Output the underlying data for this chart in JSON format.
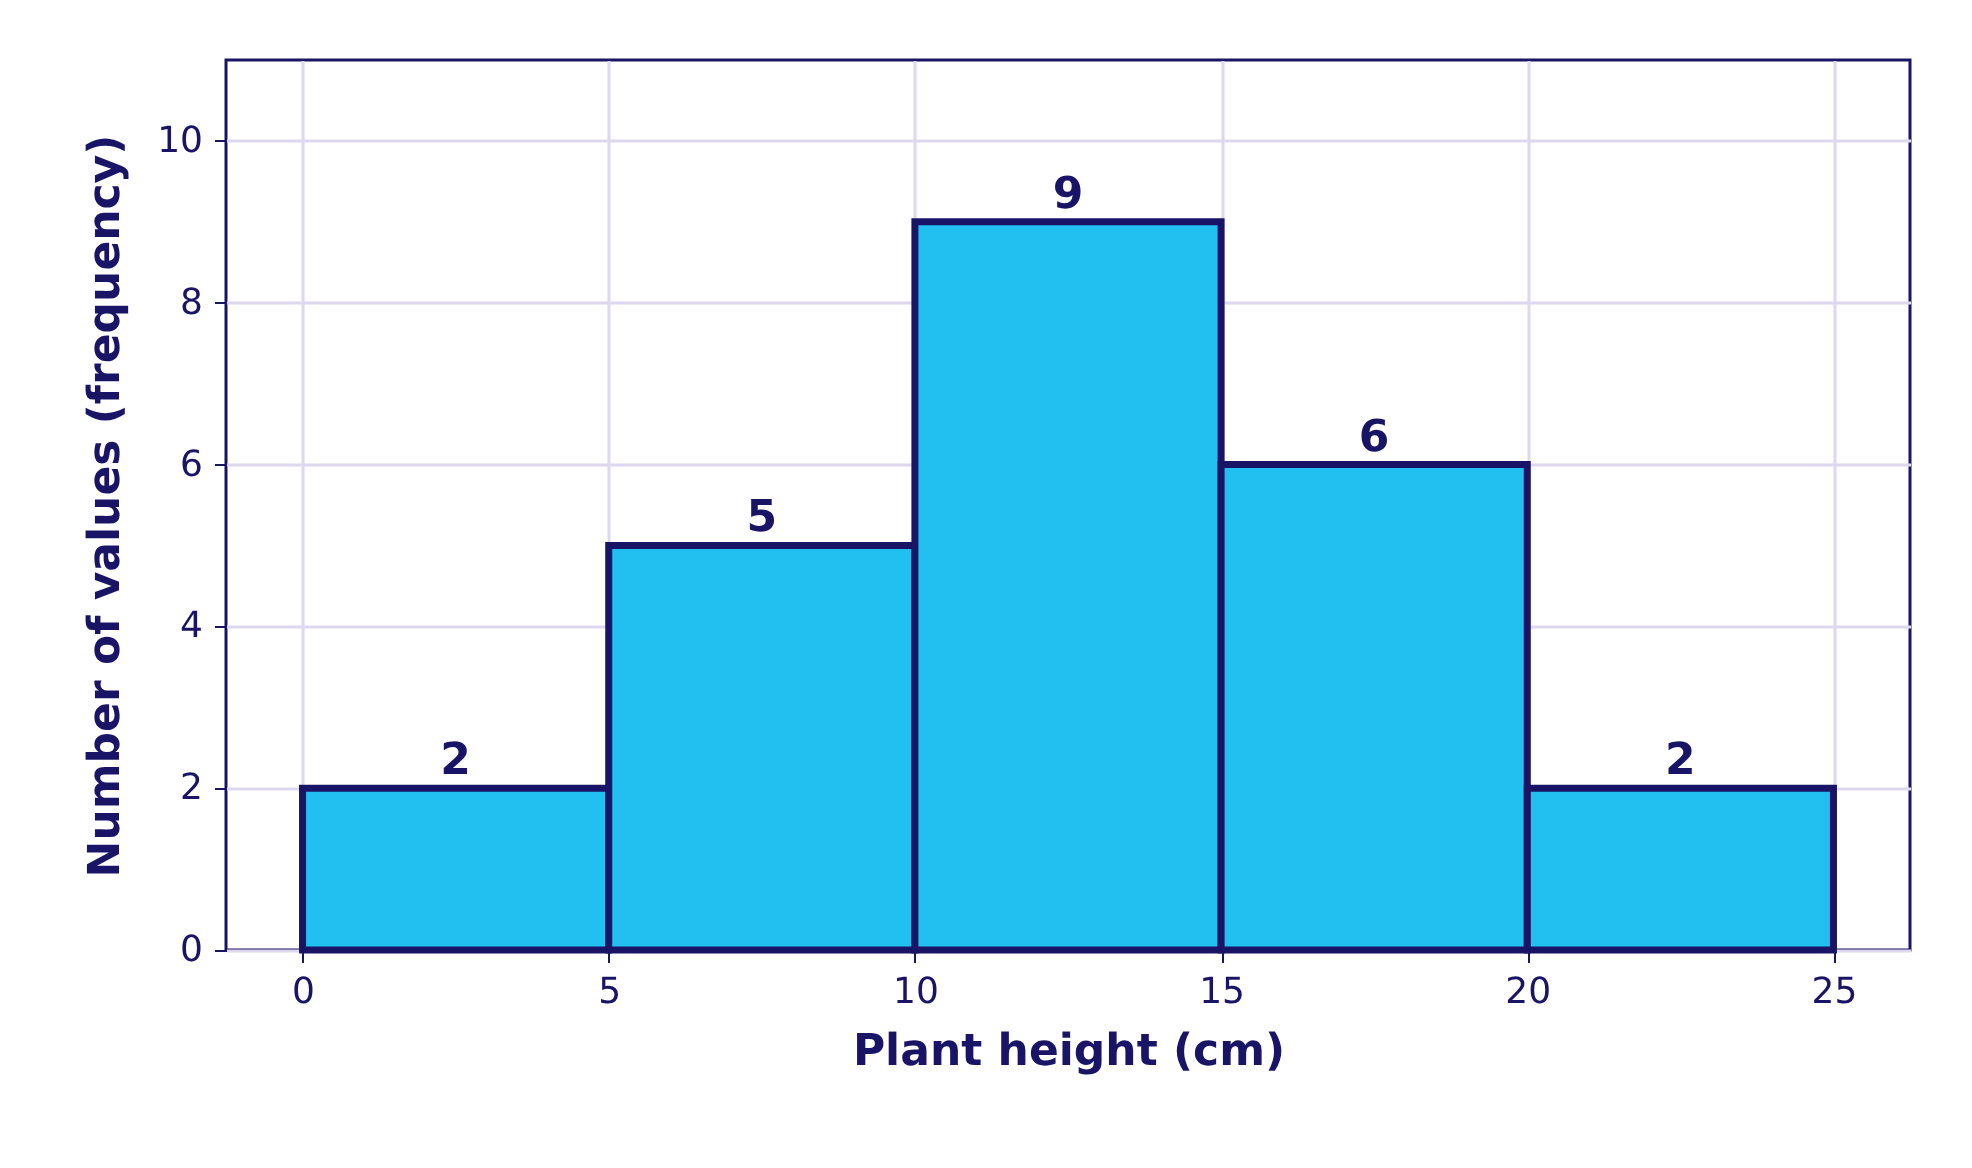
{
  "chart_data": {
    "type": "histogram",
    "xlabel": "Plant height (cm)",
    "ylabel": "Number of values (frequency)",
    "bins": [
      0,
      5,
      10,
      15,
      20,
      25
    ],
    "values": [
      2,
      5,
      9,
      6,
      2
    ],
    "color": "#22c0f0",
    "xlim": [
      -1.25,
      26.25
    ],
    "ylim": [
      0,
      11
    ],
    "xticks": [
      0,
      5,
      10,
      15,
      20,
      25
    ],
    "yticks": [
      0,
      2,
      4,
      6,
      8,
      10
    ],
    "grid": true,
    "data_labels": true
  }
}
